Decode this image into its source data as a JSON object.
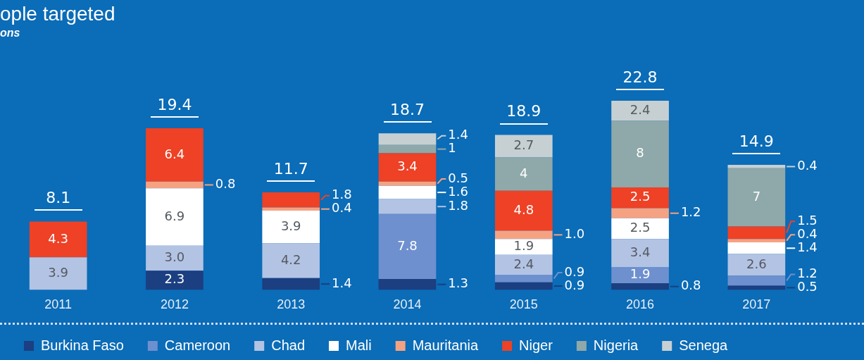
{
  "chart_data": {
    "type": "bar",
    "title": "ople targeted",
    "subtitle": "ons",
    "stacked": true,
    "data_labels": true,
    "legend": "bottom",
    "grid": false,
    "categories": [
      "2011",
      "2012",
      "2013",
      "2014",
      "2015",
      "2016",
      "2017"
    ],
    "totals": [
      "8.1",
      "19.4",
      "11.7",
      "18.7",
      "18.9",
      "22.8",
      "14.9"
    ],
    "series": [
      {
        "name": "Burkina Faso",
        "color": "#1b3f80",
        "values": [
          null,
          2.3,
          1.4,
          1.3,
          0.9,
          0.8,
          0.5
        ],
        "value_labels": [
          null,
          "2.3",
          "1.4",
          "1.3",
          "0.9",
          "0.8",
          "0.5"
        ]
      },
      {
        "name": "Cameroon",
        "color": "#6e90cf",
        "values": [
          null,
          null,
          null,
          7.8,
          0.9,
          1.9,
          1.2
        ],
        "value_labels": [
          null,
          null,
          null,
          "7.8",
          "0.9",
          "1.9",
          "1.2"
        ]
      },
      {
        "name": "Chad",
        "color": "#b3c3e4",
        "values": [
          3.9,
          3.0,
          4.2,
          1.8,
          2.4,
          3.4,
          2.6
        ],
        "value_labels": [
          "3.9",
          "3.0",
          "4.2",
          "1.8",
          "2.4",
          "3.4",
          "2.6"
        ]
      },
      {
        "name": "Mali",
        "color": "#ffffff",
        "values": [
          null,
          6.9,
          3.9,
          1.6,
          1.9,
          2.5,
          1.4
        ],
        "value_labels": [
          null,
          "6.9",
          "3.9",
          "1.6",
          "1.9",
          "2.5",
          "1.4"
        ]
      },
      {
        "name": "Mauritania",
        "color": "#f5a283",
        "values": [
          null,
          0.8,
          0.4,
          0.5,
          1.0,
          1.2,
          0.4
        ],
        "value_labels": [
          null,
          "0.8",
          "0.4",
          "0.5",
          "1.0",
          "1.2",
          "0.4"
        ]
      },
      {
        "name": "Niger",
        "color": "#ee4125",
        "values": [
          4.3,
          6.4,
          1.8,
          3.4,
          4.8,
          2.5,
          1.5
        ],
        "value_labels": [
          "4.3",
          "6.4",
          "1.8",
          "3.4",
          "4.8",
          "2.5",
          "1.5"
        ]
      },
      {
        "name": "Nigeria",
        "color": "#8fa8a9",
        "values": [
          null,
          null,
          null,
          1,
          4,
          8,
          7
        ],
        "value_labels": [
          null,
          null,
          null,
          "1",
          "4",
          "8",
          "7"
        ]
      },
      {
        "name": "Senega",
        "color": "#c6d0d3",
        "values": [
          null,
          null,
          null,
          1.4,
          2.7,
          2.4,
          0.4
        ],
        "value_labels": [
          null,
          null,
          null,
          "1.4",
          "2.7",
          "2.4",
          "0.4"
        ]
      }
    ]
  }
}
